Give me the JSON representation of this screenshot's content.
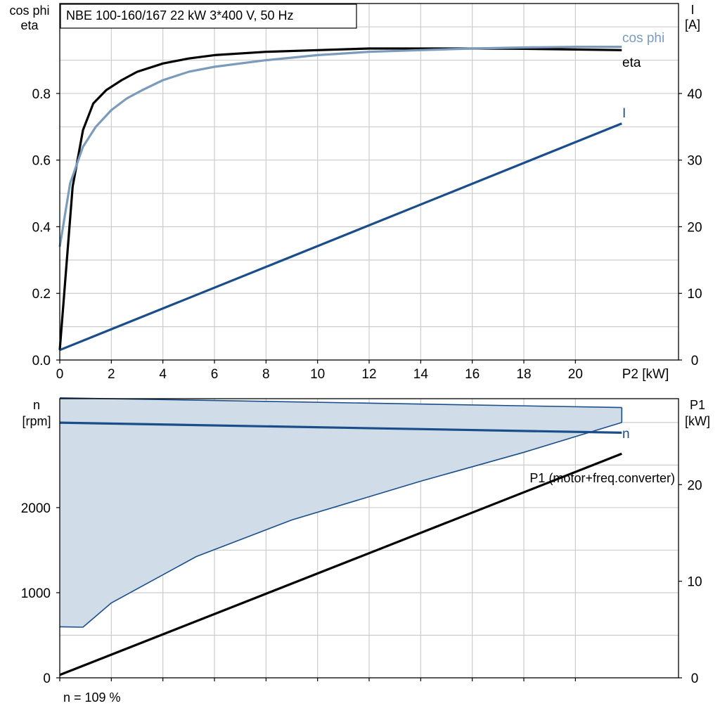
{
  "chart_data": [
    {
      "type": "line",
      "title": "NBE 100-160/167   22 kW   3*400 V, 50 Hz",
      "xlabel": "P2 [kW]",
      "ylabel_left": [
        "cos phi",
        "eta"
      ],
      "ylabel_right": [
        "I",
        "[A]"
      ],
      "xlim": [
        0,
        24
      ],
      "ylim_left": [
        0,
        1.07
      ],
      "ylim_right": [
        0,
        53.5
      ],
      "x_ticks": [
        0,
        2,
        4,
        6,
        8,
        10,
        12,
        14,
        16,
        18,
        20
      ],
      "y_ticks_left": [
        0.0,
        0.2,
        0.4,
        0.6,
        0.8
      ],
      "y_tick_labels_left": [
        "0.0",
        "0.2",
        "0.4",
        "0.6",
        "0.8"
      ],
      "y_ticks_right": [
        0,
        10,
        20,
        30,
        40
      ],
      "grid": true,
      "series": [
        {
          "name": "eta",
          "axis": "left",
          "color": "#000000",
          "x": [
            0,
            0.5,
            0.9,
            1.3,
            1.8,
            2.4,
            3.0,
            4.0,
            5.0,
            6.0,
            8.0,
            10.0,
            12.0,
            14.0,
            16.0,
            18.0,
            20.0,
            21.8
          ],
          "y": [
            0.03,
            0.52,
            0.69,
            0.77,
            0.81,
            0.84,
            0.865,
            0.89,
            0.905,
            0.915,
            0.925,
            0.93,
            0.935,
            0.935,
            0.935,
            0.934,
            0.932,
            0.93
          ]
        },
        {
          "name": "cos phi",
          "axis": "left",
          "color": "#7b9bbd",
          "x": [
            0,
            0.4,
            0.9,
            1.4,
            2.0,
            2.6,
            3.2,
            4.0,
            5.0,
            6.0,
            8.0,
            10.0,
            12.0,
            14.0,
            16.0,
            18.0,
            20.0,
            21.8
          ],
          "y": [
            0.34,
            0.53,
            0.64,
            0.7,
            0.75,
            0.785,
            0.81,
            0.84,
            0.865,
            0.88,
            0.9,
            0.915,
            0.925,
            0.93,
            0.935,
            0.938,
            0.94,
            0.94
          ]
        },
        {
          "name": "I",
          "axis": "right",
          "color": "#1a4e8a",
          "x": [
            0,
            21.8
          ],
          "y": [
            1.5,
            35.5
          ]
        }
      ]
    },
    {
      "type": "area",
      "xlim": [
        0,
        24
      ],
      "ylabel_left": [
        "n",
        "[rpm]"
      ],
      "ylabel_right": [
        "P1",
        "[kW]"
      ],
      "ylim_left": [
        0,
        3280
      ],
      "ylim_right": [
        0,
        28.9
      ],
      "y_ticks_left": [
        0,
        1000,
        2000
      ],
      "y_ticks_right": [
        0,
        10,
        20
      ],
      "grid": true,
      "footnote": "n = 109 %",
      "operating_range": {
        "color": "#d0dce8",
        "stroke": "#1a4e8a",
        "upper": {
          "x": [
            0,
            21.8
          ],
          "y": [
            3290,
            3176
          ]
        },
        "lower": {
          "x": [
            0,
            0.9,
            2.0,
            5.3,
            9.0,
            14.0,
            18.0,
            21.8
          ],
          "y": [
            600,
            595,
            880,
            1425,
            1855,
            2310,
            2650,
            3000
          ]
        }
      },
      "series": [
        {
          "name": "n",
          "axis": "left",
          "color": "#1a4e8a",
          "x": [
            0,
            21.8
          ],
          "y": [
            2998,
            2880
          ]
        },
        {
          "name": "P1 (motor+freq.converter)",
          "axis": "right",
          "color": "#000000",
          "x": [
            0,
            21.8
          ],
          "y": [
            0.3,
            23.2
          ]
        }
      ]
    }
  ]
}
